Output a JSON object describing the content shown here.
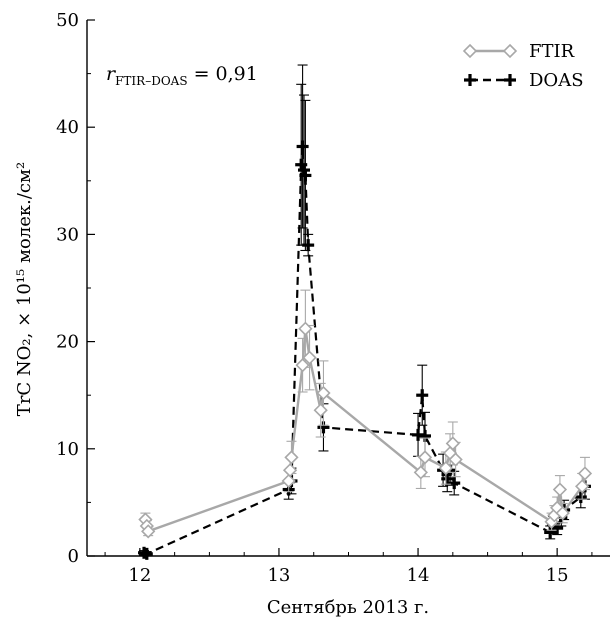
{
  "chart_data": {
    "type": "line",
    "xlabel": "Сентябрь 2013 г.",
    "ylabel": "TrC NO₂, × 10¹⁵ молек./см²",
    "xlim": [
      11.62,
      15.38
    ],
    "ylim": [
      0,
      50
    ],
    "x_ticks": [
      12,
      13,
      14,
      15
    ],
    "x_tick_labels": [
      "12",
      "13",
      "14",
      "15"
    ],
    "y_ticks": [
      0,
      10,
      20,
      30,
      40,
      50
    ],
    "y_tick_labels": [
      "0",
      "10",
      "20",
      "30",
      "40",
      "50"
    ],
    "annotation": {
      "r_symbol": "r",
      "subscript": "FTIR–DOAS",
      "value": " = 0,91"
    },
    "legend_position": "top-right",
    "series": [
      {
        "name": "FTIR",
        "color": "#a8a8a8",
        "line_style": "solid",
        "marker": "diamond",
        "points": [
          {
            "x": 12.04,
            "y": 3.4,
            "err": 0.6
          },
          {
            "x": 12.05,
            "y": 2.8,
            "err": 0.5
          },
          {
            "x": 12.06,
            "y": 2.3,
            "err": 0.4
          },
          {
            "x": 13.07,
            "y": 7.0,
            "err": 1.0
          },
          {
            "x": 13.08,
            "y": 8.0,
            "err": 1.2
          },
          {
            "x": 13.09,
            "y": 9.2,
            "err": 1.5
          },
          {
            "x": 13.17,
            "y": 17.8,
            "err": 2.5
          },
          {
            "x": 13.19,
            "y": 21.2,
            "err": 3.6
          },
          {
            "x": 13.22,
            "y": 18.5,
            "err": 3.0
          },
          {
            "x": 13.3,
            "y": 13.6,
            "err": 2.5
          },
          {
            "x": 13.32,
            "y": 15.2,
            "err": 3.0
          },
          {
            "x": 14.02,
            "y": 7.8,
            "err": 1.5
          },
          {
            "x": 14.05,
            "y": 9.2,
            "err": 1.8
          },
          {
            "x": 14.2,
            "y": 8.2,
            "err": 1.5
          },
          {
            "x": 14.23,
            "y": 9.6,
            "err": 1.8
          },
          {
            "x": 14.25,
            "y": 10.5,
            "err": 2.0
          },
          {
            "x": 14.27,
            "y": 9.0,
            "err": 1.6
          },
          {
            "x": 14.96,
            "y": 3.2,
            "err": 0.8
          },
          {
            "x": 14.98,
            "y": 3.8,
            "err": 0.9
          },
          {
            "x": 15.0,
            "y": 4.5,
            "err": 1.0
          },
          {
            "x": 15.02,
            "y": 6.2,
            "err": 1.3
          },
          {
            "x": 15.04,
            "y": 4.0,
            "err": 0.9
          },
          {
            "x": 15.18,
            "y": 6.5,
            "err": 1.2
          },
          {
            "x": 15.2,
            "y": 7.7,
            "err": 1.5
          }
        ]
      },
      {
        "name": "DOAS",
        "color": "#000000",
        "line_style": "dashed",
        "marker": "plus",
        "points": [
          {
            "x": 12.03,
            "y": 0.3,
            "err": 0.2
          },
          {
            "x": 12.05,
            "y": 0.2,
            "err": 0.2
          },
          {
            "x": 13.07,
            "y": 6.2,
            "err": 0.9
          },
          {
            "x": 13.09,
            "y": 7.0,
            "err": 1.2
          },
          {
            "x": 13.16,
            "y": 36.5,
            "err": 7.5
          },
          {
            "x": 13.17,
            "y": 38.2,
            "err": 7.6
          },
          {
            "x": 13.18,
            "y": 36.0,
            "err": 7.0
          },
          {
            "x": 13.19,
            "y": 35.5,
            "err": 7.0
          },
          {
            "x": 13.21,
            "y": 29.0,
            "err": 1.0
          },
          {
            "x": 13.32,
            "y": 12.0,
            "err": 2.2
          },
          {
            "x": 14.0,
            "y": 11.3,
            "err": 2.0
          },
          {
            "x": 14.03,
            "y": 15.0,
            "err": 2.8
          },
          {
            "x": 14.05,
            "y": 11.2,
            "err": 2.2
          },
          {
            "x": 14.18,
            "y": 8.0,
            "err": 1.5
          },
          {
            "x": 14.21,
            "y": 7.2,
            "err": 1.2
          },
          {
            "x": 14.23,
            "y": 8.0,
            "err": 1.4
          },
          {
            "x": 14.26,
            "y": 6.8,
            "err": 1.1
          },
          {
            "x": 14.95,
            "y": 2.2,
            "err": 0.6
          },
          {
            "x": 14.97,
            "y": 3.0,
            "err": 0.7
          },
          {
            "x": 15.0,
            "y": 2.6,
            "err": 0.6
          },
          {
            "x": 15.03,
            "y": 3.6,
            "err": 0.8
          },
          {
            "x": 15.05,
            "y": 4.3,
            "err": 0.9
          },
          {
            "x": 15.17,
            "y": 5.5,
            "err": 1.0
          },
          {
            "x": 15.2,
            "y": 6.5,
            "err": 1.2
          }
        ]
      }
    ]
  }
}
